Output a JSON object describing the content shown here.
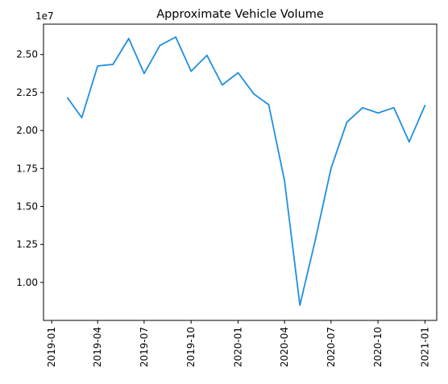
{
  "chart_data": {
    "type": "line",
    "title": "Approximate Vehicle Volume",
    "xlabel": "",
    "ylabel": "",
    "y_offset_label": "1e7",
    "y_multiplier": 10000000,
    "x_tick_labels": [
      "2019-01",
      "2019-04",
      "2019-07",
      "2019-10",
      "2020-01",
      "2020-04",
      "2020-07",
      "2020-10",
      "2021-01"
    ],
    "y_tick_labels": [
      "1.00",
      "1.25",
      "1.50",
      "1.75",
      "2.00",
      "2.25",
      "2.50"
    ],
    "y_ticks": [
      1.0,
      1.25,
      1.5,
      1.75,
      2.0,
      2.25,
      2.5
    ],
    "ylim": [
      0.75,
      2.7
    ],
    "xlim": [
      "2018-12-16",
      "2021-01-24"
    ],
    "grid": false,
    "legend": "none",
    "line_color": "#1f8fe0",
    "series": [
      {
        "x": [
          "2019-02-01",
          "2019-03-01",
          "2019-04-01",
          "2019-05-01",
          "2019-06-01",
          "2019-07-01",
          "2019-08-01",
          "2019-09-01",
          "2019-10-01",
          "2019-11-01",
          "2019-12-01",
          "2020-01-01",
          "2020-02-01",
          "2020-03-01",
          "2020-04-01",
          "2020-05-01",
          "2020-06-01",
          "2020-07-01",
          "2020-08-01",
          "2020-09-01",
          "2020-10-01",
          "2020-11-01",
          "2020-12-01",
          "2021-01-01"
        ],
        "values": [
          2.215,
          2.085,
          2.425,
          2.435,
          2.605,
          2.375,
          2.56,
          2.615,
          2.39,
          2.495,
          2.3,
          2.38,
          2.24,
          2.17,
          1.67,
          0.85,
          1.29,
          1.75,
          2.055,
          2.15,
          2.115,
          2.15,
          1.925,
          2.165
        ]
      }
    ]
  }
}
